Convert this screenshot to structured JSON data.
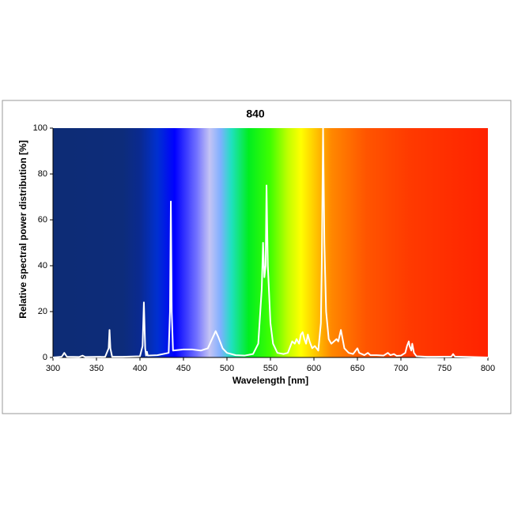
{
  "chart_data": {
    "type": "line",
    "title": "840",
    "x_label": "Wavelength [nm]",
    "y_label": "Relative spectral power distribution [%]",
    "x": [
      300,
      310,
      313,
      316,
      330,
      334,
      337,
      360,
      364,
      365,
      366,
      368,
      380,
      400,
      403,
      404.5,
      406,
      407,
      408,
      409,
      420,
      433,
      434.5,
      435.5,
      436.5,
      438,
      450,
      460,
      470,
      478,
      484,
      487,
      490,
      495,
      500,
      510,
      520,
      530,
      536,
      540,
      541.5,
      543,
      544.5,
      545.5,
      547,
      550,
      553,
      558,
      565,
      570,
      575,
      578,
      580,
      583,
      585,
      587,
      589,
      591,
      593,
      595,
      598,
      601,
      605,
      608,
      609,
      610.5,
      612,
      614,
      617,
      620,
      623,
      626,
      628,
      631,
      632,
      635,
      640,
      645,
      650,
      652,
      658,
      662,
      665,
      672,
      680,
      685,
      688,
      692,
      695,
      700,
      705,
      707,
      709,
      710,
      712,
      713,
      715,
      718,
      730,
      740,
      758,
      760,
      762,
      780,
      800
    ],
    "values": [
      0,
      0.3,
      2,
      0.3,
      0.2,
      0.8,
      0.2,
      0.3,
      4,
      12,
      4,
      0.3,
      0.3,
      0.5,
      5,
      24,
      4,
      0.8,
      2.5,
      0.8,
      1,
      2,
      20,
      68,
      20,
      3,
      3.5,
      3.5,
      3,
      4,
      9,
      11.5,
      9,
      4,
      2,
      1,
      0.8,
      1.5,
      6,
      30,
      50,
      35,
      40,
      75,
      40,
      15,
      6,
      2,
      1.5,
      2,
      7,
      6,
      8,
      6,
      10,
      11,
      8,
      6,
      10,
      7,
      4,
      5,
      3,
      15,
      40,
      100,
      50,
      20,
      8,
      6,
      7,
      8,
      7,
      12,
      10,
      4,
      2,
      1.5,
      4,
      2,
      1,
      2,
      1,
      1,
      0.8,
      2,
      1,
      1.5,
      0.7,
      0.8,
      2,
      5,
      7,
      5,
      3,
      6,
      2,
      0.5,
      0.3,
      0.3,
      0.4,
      1.5,
      0.4,
      0.2,
      0
    ],
    "color": "#ffffff",
    "xlim": [
      300,
      800
    ],
    "xticks": [
      300,
      350,
      400,
      450,
      500,
      550,
      600,
      650,
      700,
      750,
      800
    ],
    "ylim": [
      0,
      100
    ],
    "yticks": [
      0,
      20,
      40,
      60,
      80,
      100
    ]
  }
}
